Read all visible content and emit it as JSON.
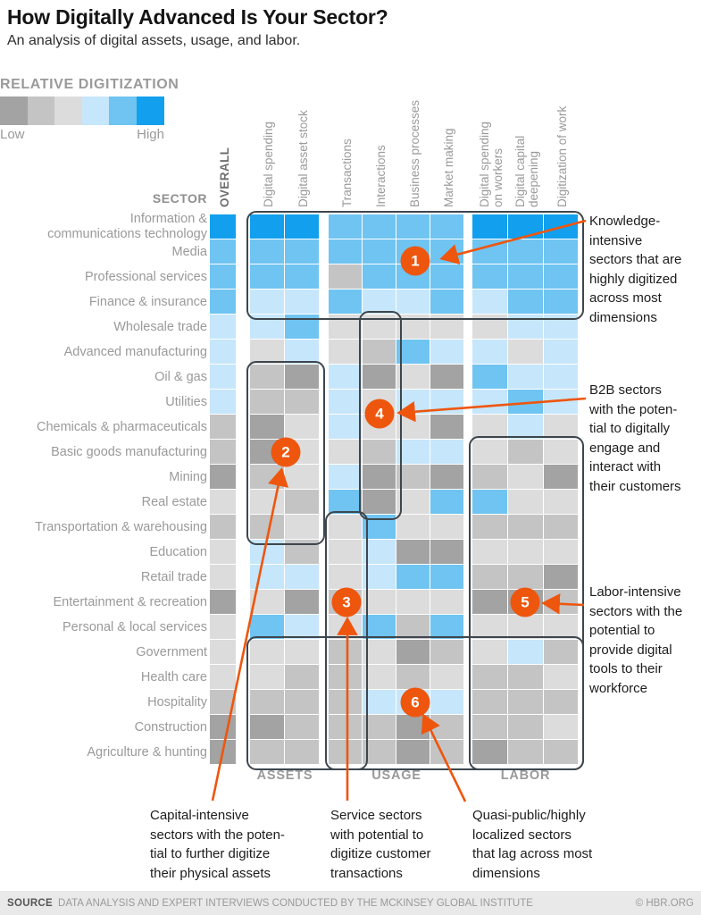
{
  "title": "How Digitally Advanced Is Your Sector?",
  "subtitle": "An analysis of digital assets, usage, and labor.",
  "legend": {
    "label": "RELATIVE DIGITIZATION",
    "low": "Low",
    "high": "High"
  },
  "sector_header": "SECTOR",
  "footer": {
    "source_label": "SOURCE",
    "source_text": "DATA ANALYSIS AND EXPERT INTERVIEWS CONDUCTED BY THE MCKINSEY GLOBAL INSTITUTE",
    "credit": "© HBR.ORG"
  },
  "chart_data": {
    "type": "heatmap",
    "title": "How Digitally Advanced Is Your Sector?",
    "value_scale": "relative digitization level, 1 = Low (dark gray) to 6 = High (bright blue)",
    "level_colors": [
      "#a3a3a3",
      "#c4c4c4",
      "#dcdcdc",
      "#c6e6fb",
      "#6fc4f1",
      "#129fee"
    ],
    "accent_orange": "#ee560e",
    "box_outline_color": "#3e464d",
    "column_groups": [
      "ASSETS",
      "USAGE",
      "LABOR"
    ],
    "columns": [
      {
        "label": "OVERALL",
        "group": null,
        "emphasis": true
      },
      {
        "label": "Digital spending",
        "group": "ASSETS"
      },
      {
        "label": "Digital asset stock",
        "group": "ASSETS"
      },
      {
        "label": "Transactions",
        "group": "USAGE"
      },
      {
        "label": "Interactions",
        "group": "USAGE"
      },
      {
        "label": "Business processes",
        "group": "USAGE"
      },
      {
        "label": "Market making",
        "group": "USAGE"
      },
      {
        "label": "Digital spending\non workers",
        "group": "LABOR"
      },
      {
        "label": "Digital capital\ndeepening",
        "group": "LABOR"
      },
      {
        "label": "Digitization of work",
        "group": "LABOR"
      }
    ],
    "rows": [
      {
        "sector": "Information &\ncommunications technology",
        "values": [
          6,
          6,
          6,
          5,
          5,
          5,
          5,
          6,
          6,
          6
        ]
      },
      {
        "sector": "Media",
        "values": [
          5,
          5,
          5,
          5,
          5,
          5,
          5,
          5,
          5,
          5
        ]
      },
      {
        "sector": "Professional services",
        "values": [
          5,
          5,
          5,
          2,
          5,
          5,
          5,
          5,
          5,
          5
        ]
      },
      {
        "sector": "Finance & insurance",
        "values": [
          5,
          4,
          4,
          5,
          4,
          4,
          5,
          4,
          5,
          5
        ]
      },
      {
        "sector": "Wholesale trade",
        "values": [
          4,
          4,
          5,
          3,
          3,
          3,
          3,
          3,
          4,
          4
        ]
      },
      {
        "sector": "Advanced manufacturing",
        "values": [
          4,
          3,
          4,
          3,
          2,
          5,
          4,
          4,
          3,
          4
        ]
      },
      {
        "sector": "Oil & gas",
        "values": [
          4,
          2,
          1,
          4,
          1,
          3,
          1,
          5,
          4,
          4
        ]
      },
      {
        "sector": "Utilities",
        "values": [
          4,
          2,
          2,
          4,
          3,
          4,
          4,
          4,
          5,
          4
        ]
      },
      {
        "sector": "Chemicals & pharmaceuticals",
        "values": [
          2,
          1,
          3,
          4,
          3,
          3,
          1,
          3,
          4,
          3
        ]
      },
      {
        "sector": "Basic goods manufacturing",
        "values": [
          2,
          1,
          3,
          3,
          2,
          4,
          4,
          3,
          2,
          3
        ]
      },
      {
        "sector": "Mining",
        "values": [
          1,
          2,
          3,
          4,
          1,
          2,
          1,
          2,
          3,
          1
        ]
      },
      {
        "sector": "Real estate",
        "values": [
          3,
          3,
          2,
          5,
          1,
          3,
          5,
          5,
          3,
          3
        ]
      },
      {
        "sector": "Transportation & warehousing",
        "values": [
          2,
          2,
          3,
          3,
          5,
          3,
          3,
          2,
          2,
          2
        ]
      },
      {
        "sector": "Education",
        "values": [
          3,
          4,
          2,
          3,
          4,
          1,
          1,
          3,
          3,
          3
        ]
      },
      {
        "sector": "Retail trade",
        "values": [
          3,
          4,
          4,
          3,
          4,
          5,
          5,
          2,
          2,
          1
        ]
      },
      {
        "sector": "Entertainment & recreation",
        "values": [
          1,
          3,
          1,
          2,
          3,
          3,
          3,
          1,
          1,
          2
        ]
      },
      {
        "sector": "Personal & local services",
        "values": [
          3,
          5,
          4,
          3,
          5,
          2,
          5,
          3,
          3,
          3
        ]
      },
      {
        "sector": "Government",
        "values": [
          3,
          3,
          3,
          2,
          3,
          1,
          2,
          3,
          4,
          2
        ]
      },
      {
        "sector": "Health care",
        "values": [
          3,
          3,
          2,
          2,
          3,
          2,
          3,
          2,
          2,
          3
        ]
      },
      {
        "sector": "Hospitality",
        "values": [
          2,
          2,
          2,
          2,
          4,
          4,
          4,
          2,
          2,
          2
        ]
      },
      {
        "sector": "Construction",
        "values": [
          1,
          1,
          2,
          2,
          2,
          1,
          2,
          2,
          2,
          3
        ]
      },
      {
        "sector": "Agriculture & hunting",
        "values": [
          1,
          2,
          2,
          2,
          2,
          1,
          2,
          1,
          2,
          2
        ]
      }
    ],
    "annotations": [
      {
        "n": 1,
        "placement": "right",
        "text": "Knowledge-\nintensive\nsectors that are\nhighly digitized\nacross most\ndimensions",
        "rows": [
          1,
          4
        ],
        "cols": [
          2,
          10
        ]
      },
      {
        "n": 2,
        "placement": "bottom",
        "text": "Capital-intensive\nsectors with the poten-\ntial to further digitize\ntheir physical assets",
        "rows": [
          7,
          13
        ],
        "cols": [
          2,
          3
        ]
      },
      {
        "n": 3,
        "placement": "bottom",
        "text": "Service sectors\nwith potential to\ndigitize customer\ntransactions",
        "rows": [
          13,
          22
        ],
        "cols": [
          4,
          4
        ]
      },
      {
        "n": 4,
        "placement": "right",
        "text": "B2B sectors\nwith the poten-\ntial to digitally\nengage and\ninteract with\ntheir customers",
        "rows": [
          5,
          12
        ],
        "cols": [
          5,
          5
        ]
      },
      {
        "n": 5,
        "placement": "right",
        "text": "Labor-intensive\nsectors with the\npotential to\nprovide digital\ntools to their\nworkforce",
        "rows": [
          10,
          22
        ],
        "cols": [
          8,
          10
        ]
      },
      {
        "n": 6,
        "placement": "bottom",
        "text": "Quasi-public/highly\nlocalized sectors\nthat lag across most\ndimensions",
        "rows": [
          18,
          22
        ],
        "cols": [
          2,
          10
        ]
      }
    ]
  }
}
